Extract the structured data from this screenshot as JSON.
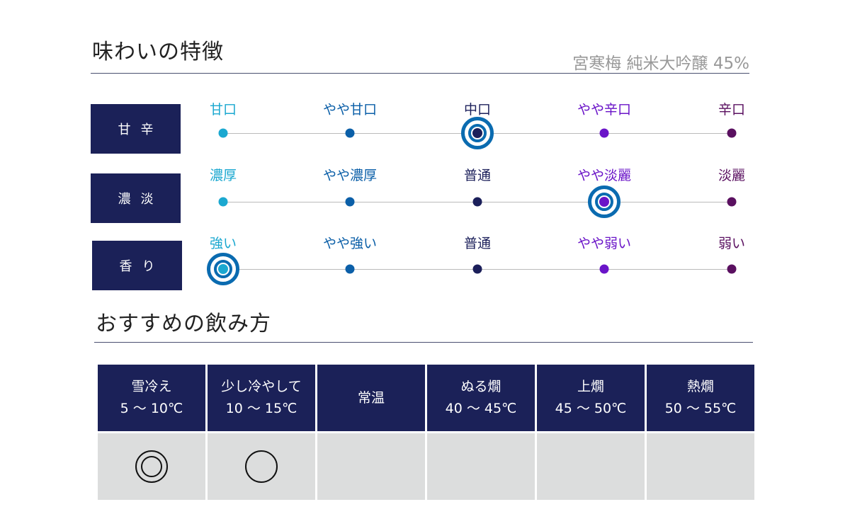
{
  "taste": {
    "title": "味わいの特徴",
    "product": "宮寒梅 純米大吟醸 45%"
  },
  "level_colors": [
    "#1ba8d0",
    "#0b5fa8",
    "#1b1f5a",
    "#6a14c8",
    "#5a1060"
  ],
  "rows": [
    {
      "label": "甘辛",
      "levels": [
        "甘口",
        "やや甘口",
        "中口",
        "やや辛口",
        "辛口"
      ],
      "selected": 2
    },
    {
      "label": "濃淡",
      "levels": [
        "濃厚",
        "やや濃厚",
        "普通",
        "やや淡麗",
        "淡麗"
      ],
      "selected": 3
    },
    {
      "label": "香り",
      "levels": [
        "強い",
        "やや強い",
        "普通",
        "やや弱い",
        "弱い"
      ],
      "selected": 0
    }
  ],
  "serving": {
    "title": "おすすめの飲み方",
    "columns": [
      {
        "name": "雪冷え",
        "temp": "5 ～ 10℃",
        "rating": "double-circle"
      },
      {
        "name": "少し冷やして",
        "temp": "10 ～ 15℃",
        "rating": "circle"
      },
      {
        "name": "常温",
        "temp": "",
        "rating": ""
      },
      {
        "name": "ぬる燗",
        "temp": "40 ～ 45℃",
        "rating": ""
      },
      {
        "name": "上燗",
        "temp": "45 ～ 50℃",
        "rating": ""
      },
      {
        "name": "熱燗",
        "temp": "50 ～ 55℃",
        "rating": ""
      }
    ]
  }
}
